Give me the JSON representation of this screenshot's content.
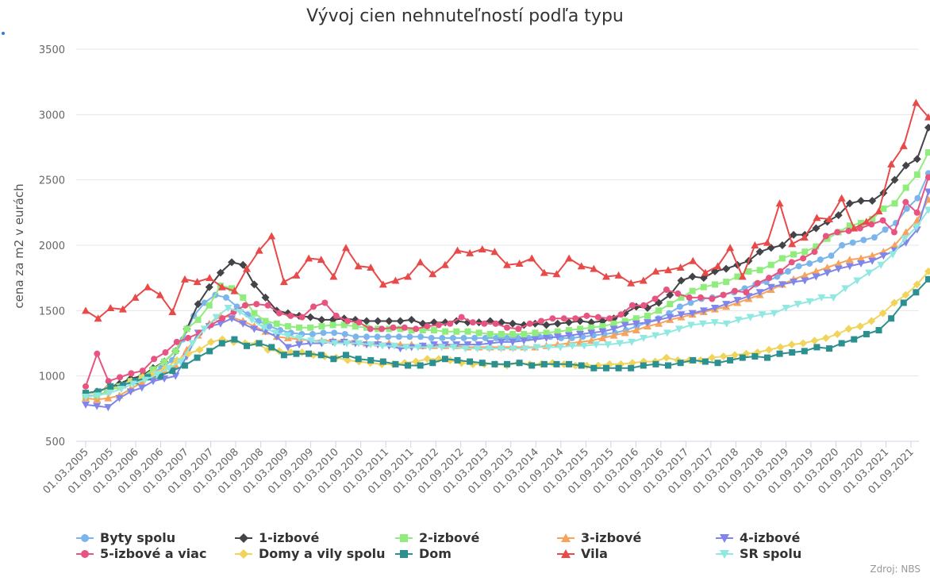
{
  "chart_data": {
    "type": "line",
    "title": "Vývoj cien nehnuteľností podľa typu",
    "ylabel": "cena za m2 v eurách",
    "xlabel": "",
    "source": "Zdroj: NBS",
    "ylim": [
      500,
      3500
    ],
    "yticks": [
      "500",
      "1000",
      "1500",
      "2000",
      "2500",
      "3000",
      "3500"
    ],
    "xticks": [
      "01.03.2005",
      "01.09.2005",
      "01.03.2006",
      "01.09.2006",
      "01.03.2007",
      "01.09.2007",
      "01.03.2008",
      "01.09.2008",
      "01.03.2009",
      "01.09.2009",
      "01.03.2010",
      "01.09.2010",
      "01.03.2011",
      "01.09.2011",
      "01.03.2012",
      "01.09.2012",
      "01.03.2013",
      "01.09.2013",
      "01.03.2014",
      "01.09.2014",
      "01.03.2015",
      "01.09.2015",
      "01.03.2016",
      "01.09.2016",
      "01.03.2017",
      "01.09.2017",
      "01.03.2018",
      "01.09.2018",
      "01.03.2019",
      "01.09.2019",
      "01.03.2020",
      "01.09.2020",
      "01.03.2021",
      "01.09.2021"
    ],
    "grid": true,
    "legend_position": "bottom",
    "series": [
      {
        "name": "Byty spolu",
        "color": "#7cb5ec",
        "marker": "circle",
        "values": [
          850,
          850,
          880,
          920,
          960,
          980,
          1020,
          1060,
          1120,
          1280,
          1460,
          1560,
          1620,
          1600,
          1530,
          1470,
          1420,
          1380,
          1350,
          1330,
          1320,
          1320,
          1330,
          1330,
          1320,
          1300,
          1300,
          1300,
          1300,
          1300,
          1300,
          1300,
          1290,
          1290,
          1290,
          1290,
          1290,
          1290,
          1290,
          1290,
          1290,
          1290,
          1300,
          1300,
          1290,
          1290,
          1300,
          1310,
          1320,
          1330,
          1350,
          1380,
          1410,
          1440,
          1480,
          1530,
          1560,
          1590,
          1600,
          1620,
          1640,
          1670,
          1700,
          1720,
          1760,
          1800,
          1840,
          1860,
          1890,
          1920,
          2000,
          2020,
          2040,
          2060,
          2120,
          2170,
          2280,
          2360,
          2550
        ]
      },
      {
        "name": "1-izbové",
        "color": "#434348",
        "marker": "diamond",
        "values": [
          870,
          880,
          910,
          940,
          980,
          1000,
          1060,
          1110,
          1190,
          1360,
          1550,
          1680,
          1790,
          1870,
          1850,
          1700,
          1600,
          1500,
          1480,
          1460,
          1450,
          1430,
          1430,
          1440,
          1430,
          1420,
          1420,
          1420,
          1420,
          1430,
          1400,
          1410,
          1410,
          1420,
          1410,
          1410,
          1420,
          1410,
          1400,
          1390,
          1400,
          1390,
          1400,
          1410,
          1420,
          1410,
          1420,
          1440,
          1480,
          1530,
          1520,
          1560,
          1620,
          1730,
          1760,
          1750,
          1800,
          1820,
          1850,
          1880,
          1950,
          1980,
          2000,
          2080,
          2080,
          2130,
          2180,
          2230,
          2320,
          2340,
          2340,
          2400,
          2500,
          2610,
          2660,
          2900
        ]
      },
      {
        "name": "2-izbové",
        "color": "#90ed7d",
        "marker": "square",
        "values": [
          840,
          850,
          880,
          920,
          960,
          990,
          1050,
          1110,
          1190,
          1360,
          1430,
          1540,
          1690,
          1670,
          1600,
          1480,
          1420,
          1400,
          1380,
          1370,
          1370,
          1380,
          1390,
          1390,
          1380,
          1370,
          1360,
          1360,
          1360,
          1350,
          1350,
          1350,
          1340,
          1340,
          1340,
          1330,
          1320,
          1320,
          1320,
          1320,
          1330,
          1330,
          1340,
          1350,
          1360,
          1370,
          1380,
          1400,
          1420,
          1440,
          1460,
          1500,
          1550,
          1600,
          1650,
          1680,
          1700,
          1720,
          1760,
          1800,
          1810,
          1850,
          1900,
          1930,
          1950,
          1990,
          2050,
          2100,
          2150,
          2170,
          2200,
          2280,
          2320,
          2440,
          2540,
          2710
        ]
      },
      {
        "name": "3-izbové",
        "color": "#f7a35c",
        "marker": "triangle",
        "values": [
          830,
          820,
          830,
          850,
          900,
          950,
          1000,
          1040,
          1080,
          1200,
          1310,
          1400,
          1460,
          1450,
          1420,
          1380,
          1340,
          1300,
          1290,
          1280,
          1270,
          1270,
          1270,
          1270,
          1260,
          1250,
          1250,
          1250,
          1240,
          1240,
          1230,
          1230,
          1230,
          1230,
          1220,
          1220,
          1220,
          1220,
          1220,
          1220,
          1220,
          1230,
          1240,
          1250,
          1260,
          1270,
          1290,
          1310,
          1330,
          1350,
          1380,
          1400,
          1430,
          1450,
          1470,
          1490,
          1510,
          1530,
          1560,
          1590,
          1620,
          1660,
          1700,
          1740,
          1770,
          1800,
          1830,
          1860,
          1890,
          1900,
          1920,
          1950,
          2000,
          2100,
          2190,
          2350
        ]
      },
      {
        "name": "4-izbové",
        "color": "#8085e9",
        "marker": "triangle-down",
        "values": [
          780,
          770,
          760,
          830,
          880,
          910,
          960,
          980,
          1000,
          1150,
          1330,
          1380,
          1400,
          1440,
          1400,
          1360,
          1340,
          1300,
          1220,
          1240,
          1250,
          1250,
          1260,
          1260,
          1250,
          1240,
          1240,
          1230,
          1210,
          1220,
          1230,
          1240,
          1240,
          1240,
          1240,
          1240,
          1250,
          1260,
          1260,
          1270,
          1280,
          1290,
          1300,
          1310,
          1320,
          1330,
          1340,
          1360,
          1390,
          1400,
          1410,
          1430,
          1450,
          1470,
          1480,
          1500,
          1520,
          1550,
          1580,
          1610,
          1640,
          1680,
          1700,
          1720,
          1730,
          1760,
          1790,
          1820,
          1840,
          1860,
          1880,
          1920,
          1960,
          2020,
          2120,
          2410
        ]
      },
      {
        "name": "5-izbové a viac",
        "color": "#e75480",
        "marker": "circle",
        "values": [
          920,
          1170,
          960,
          990,
          1020,
          1040,
          1130,
          1180,
          1260,
          1290,
          1330,
          1390,
          1440,
          1490,
          1540,
          1550,
          1540,
          1480,
          1460,
          1450,
          1530,
          1560,
          1460,
          1420,
          1410,
          1360,
          1360,
          1370,
          1370,
          1360,
          1380,
          1390,
          1400,
          1450,
          1410,
          1400,
          1400,
          1370,
          1360,
          1400,
          1420,
          1440,
          1440,
          1440,
          1460,
          1450,
          1440,
          1470,
          1540,
          1540,
          1590,
          1660,
          1630,
          1600,
          1600,
          1590,
          1620,
          1650,
          1640,
          1710,
          1750,
          1800,
          1870,
          1900,
          1950,
          2070,
          2100,
          2110,
          2130,
          2160,
          2190,
          2100,
          2330,
          2250,
          2520
        ]
      },
      {
        "name": "Domy a vily spolu",
        "color": "#f1d45c",
        "marker": "diamond",
        "values": [
          870,
          870,
          910,
          920,
          960,
          990,
          1020,
          1060,
          1120,
          1170,
          1200,
          1260,
          1280,
          1260,
          1250,
          1250,
          1200,
          1190,
          1180,
          1180,
          1160,
          1150,
          1140,
          1120,
          1110,
          1100,
          1090,
          1090,
          1100,
          1110,
          1130,
          1130,
          1120,
          1100,
          1090,
          1090,
          1090,
          1080,
          1100,
          1090,
          1090,
          1100,
          1090,
          1080,
          1080,
          1080,
          1090,
          1090,
          1100,
          1110,
          1110,
          1140,
          1120,
          1120,
          1120,
          1140,
          1150,
          1160,
          1170,
          1180,
          1200,
          1220,
          1240,
          1250,
          1270,
          1290,
          1320,
          1360,
          1380,
          1420,
          1480,
          1560,
          1620,
          1700,
          1800
        ]
      },
      {
        "name": "Dom",
        "color": "#2b908f",
        "marker": "square",
        "values": [
          870,
          880,
          920,
          930,
          960,
          990,
          1000,
          1040,
          1080,
          1140,
          1190,
          1250,
          1280,
          1230,
          1250,
          1220,
          1160,
          1170,
          1170,
          1160,
          1130,
          1160,
          1130,
          1120,
          1110,
          1090,
          1080,
          1080,
          1100,
          1130,
          1120,
          1110,
          1100,
          1090,
          1090,
          1100,
          1080,
          1090,
          1090,
          1090,
          1080,
          1060,
          1060,
          1060,
          1060,
          1080,
          1090,
          1080,
          1100,
          1120,
          1110,
          1100,
          1120,
          1140,
          1150,
          1140,
          1170,
          1180,
          1190,
          1220,
          1210,
          1250,
          1280,
          1320,
          1350,
          1440,
          1560,
          1640,
          1740
        ]
      },
      {
        "name": "Vila",
        "color": "#e84a4a",
        "marker": "triangle",
        "values": [
          1500,
          1440,
          1520,
          1510,
          1600,
          1680,
          1620,
          1490,
          1740,
          1720,
          1750,
          1680,
          1650,
          1820,
          1960,
          2070,
          1720,
          1770,
          1900,
          1890,
          1760,
          1980,
          1840,
          1830,
          1700,
          1730,
          1760,
          1870,
          1780,
          1850,
          1960,
          1940,
          1970,
          1950,
          1850,
          1860,
          1900,
          1790,
          1780,
          1900,
          1840,
          1820,
          1760,
          1770,
          1710,
          1730,
          1800,
          1810,
          1830,
          1880,
          1790,
          1840,
          1980,
          1760,
          2000,
          2020,
          2320,
          2010,
          2060,
          2210,
          2200,
          2360,
          2130,
          2180,
          2260,
          2620,
          2760,
          3090,
          2980
        ]
      },
      {
        "name": "SR spolu",
        "color": "#91e8e1",
        "marker": "triangle-down",
        "values": [
          840,
          850,
          870,
          900,
          940,
          970,
          1010,
          1060,
          1110,
          1250,
          1360,
          1450,
          1520,
          1490,
          1430,
          1370,
          1330,
          1310,
          1290,
          1270,
          1260,
          1250,
          1250,
          1250,
          1240,
          1230,
          1230,
          1220,
          1220,
          1220,
          1220,
          1220,
          1210,
          1210,
          1210,
          1210,
          1210,
          1210,
          1220,
          1220,
          1220,
          1230,
          1230,
          1240,
          1240,
          1250,
          1260,
          1290,
          1310,
          1330,
          1360,
          1390,
          1400,
          1410,
          1400,
          1430,
          1450,
          1470,
          1480,
          1520,
          1550,
          1570,
          1600,
          1600,
          1670,
          1730,
          1790,
          1850,
          1930,
          2050,
          2140,
          2270
        ]
      }
    ]
  }
}
